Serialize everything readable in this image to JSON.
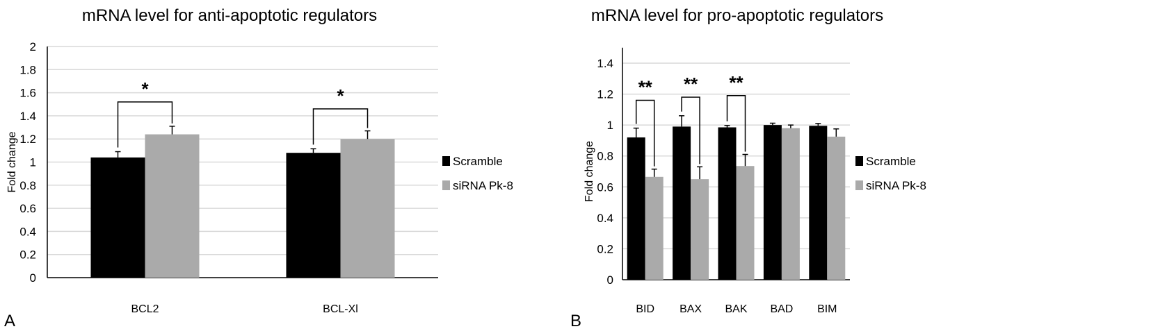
{
  "chart_data": [
    {
      "type": "bar",
      "panel_label": "A",
      "title": "mRNA level for anti-apoptotic regulators",
      "xlabel": "",
      "ylabel": "Fold change",
      "ylim": [
        0,
        2
      ],
      "yticks": [
        "0",
        "0.2",
        "0.4",
        "0.6",
        "0.8",
        "1",
        "1.2",
        "1.4",
        "1.6",
        "1.8",
        "2"
      ],
      "grid": true,
      "legend_position": "right",
      "categories": [
        "BCL2",
        "BCL-Xl"
      ],
      "series": [
        {
          "name": "Scramble",
          "color": "#000000",
          "values": [
            1.04,
            1.08
          ],
          "errors": [
            0.05,
            0.035
          ]
        },
        {
          "name": "siRNA Pk-8",
          "color": "#aaaaaa",
          "values": [
            1.24,
            1.2
          ],
          "errors": [
            0.07,
            0.07
          ]
        }
      ],
      "significance": [
        {
          "category": "BCL2",
          "label": "*",
          "level": 1.52
        },
        {
          "category": "BCL-Xl",
          "label": "*",
          "level": 1.46
        }
      ]
    },
    {
      "type": "bar",
      "panel_label": "B",
      "title": "mRNA level for pro-apoptotic regulators",
      "xlabel": "",
      "ylabel": "Fold change",
      "ylim": [
        0,
        1.5
      ],
      "yticks": [
        "0",
        "0.2",
        "0.4",
        "0.6",
        "0.8",
        "1",
        "1.2",
        "1.4"
      ],
      "grid": true,
      "legend_position": "right",
      "categories": [
        "BID",
        "BAX",
        "BAK",
        "BAD",
        "BIM"
      ],
      "series": [
        {
          "name": "Scramble",
          "color": "#000000",
          "values": [
            0.92,
            0.99,
            0.985,
            1.0,
            0.995
          ],
          "errors": [
            0.06,
            0.07,
            0.012,
            0.012,
            0.015
          ]
        },
        {
          "name": "siRNA Pk-8",
          "color": "#aaaaaa",
          "values": [
            0.665,
            0.65,
            0.735,
            0.98,
            0.925
          ],
          "errors": [
            0.05,
            0.08,
            0.075,
            0.02,
            0.05
          ]
        }
      ],
      "significance": [
        {
          "category": "BID",
          "label": "**",
          "level": 1.16
        },
        {
          "category": "BAX",
          "label": "**",
          "level": 1.18
        },
        {
          "category": "BAK",
          "label": "**",
          "level": 1.19
        }
      ]
    }
  ]
}
